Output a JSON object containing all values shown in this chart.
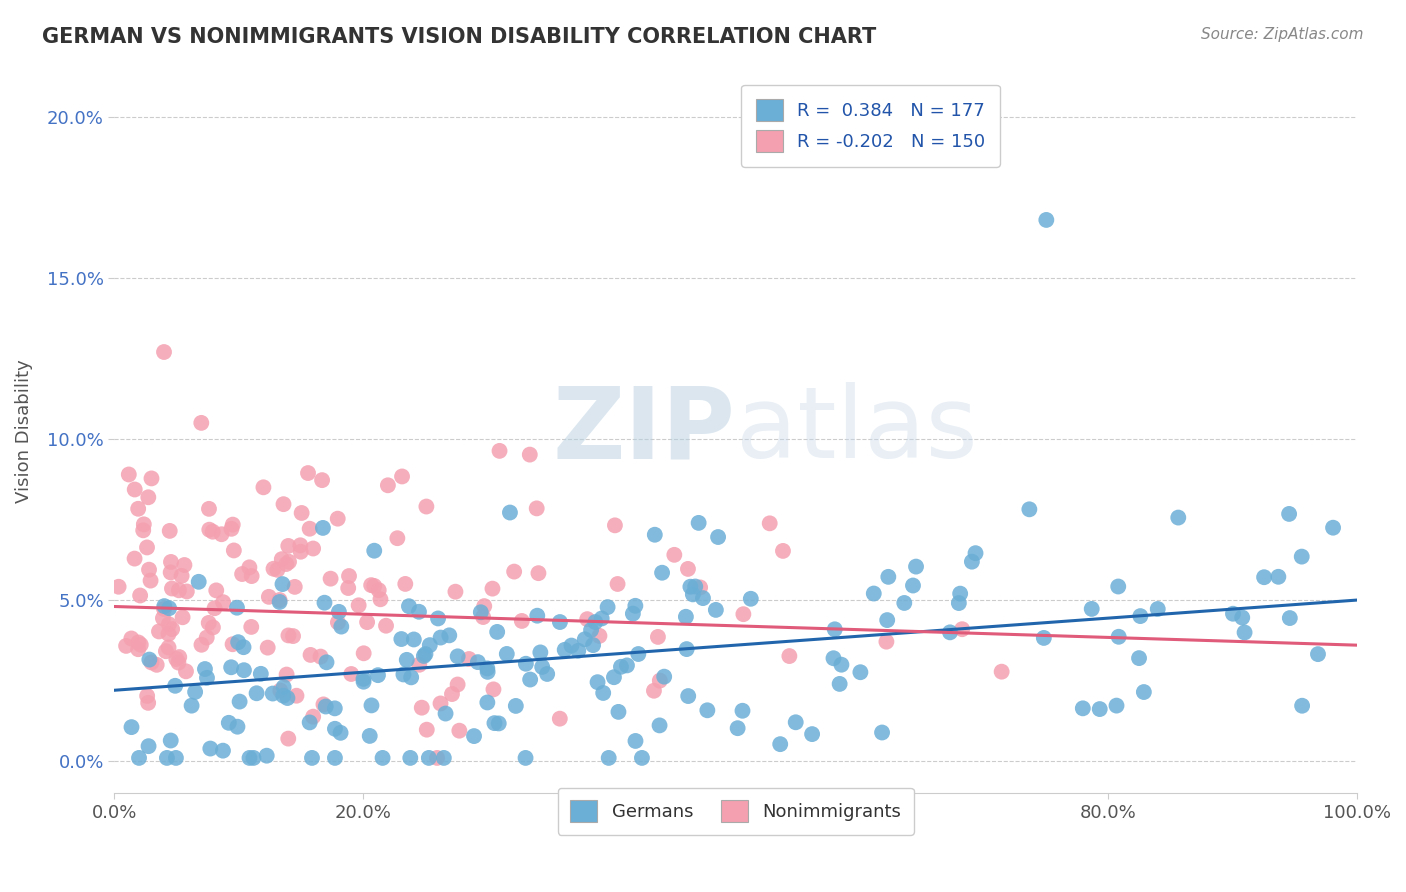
{
  "title": "GERMAN VS NONIMMIGRANTS VISION DISABILITY CORRELATION CHART",
  "source": "Source: ZipAtlas.com",
  "xlabel_ticks": [
    "0.0%",
    "20.0%",
    "40.0%",
    "60.0%",
    "80.0%",
    "100.0%"
  ],
  "ylabel_ticks": [
    "0.0%",
    "5.0%",
    "10.0%",
    "15.0%",
    "20.0%"
  ],
  "xlim": [
    0.0,
    1.0
  ],
  "ylim": [
    -0.01,
    0.215
  ],
  "blue_color": "#6baed6",
  "pink_color": "#f4a0b0",
  "blue_line_color": "#2166ac",
  "pink_line_color": "#e05a7a",
  "legend_blue_label": "R =  0.384   N = 177",
  "legend_pink_label": "R = -0.202   N = 150",
  "bottom_legend_blue": "Germans",
  "bottom_legend_pink": "Nonimmigrants",
  "watermark_zip": "ZIP",
  "watermark_atlas": "atlas",
  "blue_R": 0.384,
  "blue_N": 177,
  "pink_R": -0.202,
  "pink_N": 150,
  "blue_intercept": 0.022,
  "blue_slope": 0.028,
  "pink_intercept": 0.048,
  "pink_slope": -0.012
}
